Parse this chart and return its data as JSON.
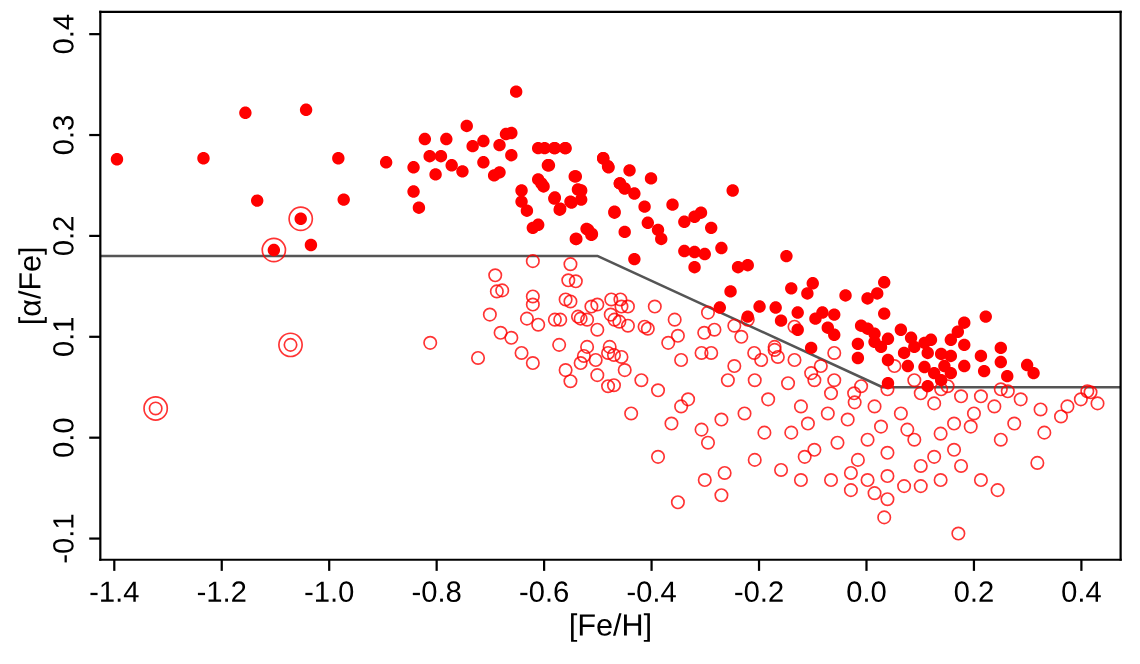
{
  "chart_data": {
    "type": "scatter",
    "xlabel": "[Fe/H]",
    "ylabel": "[α/Fe]",
    "xlim": [
      -1.426,
      0.473
    ],
    "ylim": [
      -0.121,
      0.422
    ],
    "xticks": [
      -1.4,
      -1.2,
      {
        "value": -1.0,
        "label": "-1.0"
      },
      -0.8,
      -0.6,
      -0.4,
      -0.2,
      {
        "value": 0.0,
        "label": "0.0"
      },
      0.2,
      0.4
    ],
    "yticks": [
      -0.1,
      {
        "value": 0.0,
        "label": "0.0"
      },
      0.1,
      0.2,
      0.3,
      0.4
    ],
    "grid": false,
    "legend": false,
    "marker": "circle",
    "series": [
      {
        "type": "line",
        "color": "#555555",
        "marker": "none",
        "line_style": "solid",
        "x": [
          -1.426,
          -0.5,
          0.03,
          0.473
        ],
        "values": [
          0.18,
          0.18,
          0.05,
          0.05
        ]
      },
      {
        "color": "#ff0000",
        "x": [
          -1.395,
          -1.234,
          -1.156,
          -1.043,
          -1.134,
          -1.053,
          -1.103,
          -1.034,
          -0.983,
          -0.973,
          -0.894,
          -0.843,
          -0.843,
          -0.833,
          -0.822,
          -0.813,
          -0.802,
          -0.792,
          -0.782,
          -0.772,
          -0.752,
          -0.744,
          -0.733,
          -0.713,
          -0.713,
          -0.693,
          -0.683,
          -0.683,
          -0.671,
          -0.661,
          -0.661,
          -0.652,
          -0.642,
          -0.642,
          -0.632,
          -0.621,
          -0.611,
          -0.611,
          -0.611,
          -0.601,
          -0.591,
          -0.581,
          -0.581,
          -0.571,
          -0.561,
          -0.551,
          -0.541,
          -0.541,
          -0.531,
          -0.521,
          -0.511,
          -0.49,
          -0.48,
          -0.469,
          -0.459,
          -0.599,
          -0.58,
          -0.56,
          -0.593,
          -0.605,
          -0.58,
          -0.57,
          -0.543,
          -0.537,
          -0.531,
          -0.549,
          -0.54,
          -0.518,
          -0.512,
          -0.49,
          -0.481,
          -0.469,
          -0.459,
          -0.45,
          -0.441,
          -0.432,
          -0.401,
          -0.45,
          -0.413,
          -0.407,
          -0.388,
          -0.382,
          -0.361,
          -0.339,
          -0.32,
          -0.308,
          -0.289,
          -0.339,
          -0.32,
          -0.301,
          -0.27,
          -0.32,
          -0.432,
          -0.249,
          -0.239,
          -0.221,
          -0.253,
          -0.273,
          -0.221,
          -0.199,
          -0.169,
          -0.149,
          -0.159,
          -0.14,
          -0.128,
          -0.128,
          -0.11,
          -0.1,
          -0.095,
          -0.082,
          -0.072,
          -0.06,
          -0.06,
          -0.103,
          -0.039,
          0.002,
          0.02,
          0.033,
          0.033,
          -0.01,
          0.002,
          0.015,
          -0.016,
          -0.016,
          0.015,
          0.027,
          0.04,
          0.04,
          0.064,
          0.083,
          0.07,
          0.089,
          0.108,
          0.12,
          0.114,
          0.139,
          0.145,
          0.126,
          0.04,
          0.077,
          0.108,
          0.157,
          0.17,
          0.182,
          0.222,
          0.182,
          0.157,
          0.157,
          0.182,
          0.213,
          0.219,
          0.25,
          0.25,
          0.262,
          0.299,
          0.311,
          0.114,
          0.139
        ],
        "values": [
          0.276,
          0.277,
          0.322,
          0.325,
          0.235,
          0.217,
          0.186,
          0.191,
          0.277,
          0.236,
          0.273,
          0.268,
          0.244,
          0.228,
          0.296,
          0.279,
          0.261,
          0.279,
          0.296,
          0.27,
          0.264,
          0.309,
          0.289,
          0.273,
          0.294,
          0.26,
          0.263,
          0.29,
          0.301,
          0.302,
          0.28,
          0.343,
          0.245,
          0.234,
          0.225,
          0.208,
          0.211,
          0.287,
          0.256,
          0.249,
          0.27,
          0.237,
          0.287,
          0.226,
          0.287,
          0.234,
          0.259,
          0.197,
          0.245,
          0.207,
          0.202,
          0.277,
          0.268,
          0.223,
          0.252,
          0.287,
          0.287,
          0.287,
          0.27,
          0.252,
          0.238,
          0.227,
          0.259,
          0.246,
          0.236,
          0.233,
          0.197,
          0.206,
          0.201,
          0.277,
          0.269,
          0.224,
          0.252,
          0.247,
          0.265,
          0.242,
          0.257,
          0.204,
          0.229,
          0.213,
          0.206,
          0.197,
          0.231,
          0.214,
          0.219,
          0.223,
          0.208,
          0.185,
          0.184,
          0.182,
          0.188,
          0.169,
          0.177,
          0.245,
          0.169,
          0.171,
          0.145,
          0.129,
          0.12,
          0.13,
          0.129,
          0.18,
          0.116,
          0.148,
          0.124,
          0.107,
          0.143,
          0.153,
          0.118,
          0.124,
          0.109,
          0.102,
          0.122,
          0.089,
          0.141,
          0.138,
          0.143,
          0.154,
          0.123,
          0.111,
          0.108,
          0.103,
          0.093,
          0.079,
          0.095,
          0.09,
          0.098,
          0.077,
          0.107,
          0.099,
          0.084,
          0.09,
          0.094,
          0.097,
          0.084,
          0.083,
          0.071,
          0.064,
          0.054,
          0.071,
          0.07,
          0.097,
          0.105,
          0.114,
          0.12,
          0.092,
          0.081,
          0.064,
          0.071,
          0.081,
          0.066,
          0.089,
          0.075,
          0.061,
          0.072,
          0.064,
          0.051,
          0.057
        ]
      },
      {
        "color": "#ff0000",
        "x": [
          -1.323,
          -1.072,
          -0.691,
          -0.701,
          -0.681,
          -0.688,
          -0.678,
          -0.661,
          -0.812,
          -0.723,
          -0.642,
          -0.621,
          -0.621,
          -0.621,
          -0.632,
          -0.611,
          -0.621,
          -0.57,
          -0.572,
          -0.56,
          -0.551,
          -0.551,
          -0.541,
          -0.551,
          -0.532,
          -0.52,
          -0.52,
          -0.526,
          -0.532,
          -0.501,
          -0.501,
          -0.501,
          -0.504,
          -0.47,
          -0.46,
          -0.458,
          -0.476,
          -0.47,
          -0.475,
          -0.444,
          -0.413,
          -0.478,
          -0.45,
          -0.481,
          -0.456,
          -0.388,
          -0.363,
          -0.388,
          -0.351,
          -0.301,
          -0.27,
          -0.264,
          -0.295,
          -0.332,
          -0.307,
          -0.369,
          -0.345,
          -0.283,
          -0.233,
          -0.258,
          -0.227,
          -0.208,
          -0.19,
          -0.159,
          -0.165,
          -0.171,
          -0.146,
          -0.122,
          -0.109,
          -0.097,
          -0.122,
          -0.066,
          -0.054,
          -0.035,
          -0.066,
          -0.085,
          -0.134,
          -0.029,
          -0.029,
          0.002,
          0.015,
          0.033,
          0.039,
          0.07,
          0.002,
          0.015,
          -0.01,
          0.039,
          0.064,
          0.089,
          0.101,
          0.126,
          0.138,
          0.126,
          0.176,
          0.163,
          0.194,
          0.176,
          0.213,
          0.244,
          0.171,
          0.163,
          0.25,
          0.275,
          0.318,
          0.331,
          0.238,
          0.287,
          0.324,
          0.374,
          0.399,
          0.43,
          0.417,
          0.362,
          0.25,
          0.213,
          0.2,
          0.101,
          0.076,
          0.039,
          -0.022,
          -0.072,
          -0.183,
          -0.208,
          -0.246,
          -0.27,
          -0.307,
          -0.345,
          -0.419,
          -0.438,
          -0.469,
          -0.196,
          -0.097,
          0.052,
          0.089,
          0.151,
          -0.14,
          -0.115,
          0.039,
          0.101,
          0.138,
          -0.016,
          0.027,
          -0.06,
          -0.134,
          -0.221,
          -0.295,
          -0.357,
          -0.394,
          -0.555,
          -0.56,
          -0.58,
          -0.537,
          -0.512,
          -0.481,
          -0.456,
          -0.444,
          -0.407,
          -0.351,
          -0.302,
          -0.289,
          -0.246,
          -0.209,
          -0.171,
          -0.103,
          -0.06,
          -0.023,
          0.139,
          0.263,
          0.411
        ],
        "values": [
          0.029,
          0.092,
          0.161,
          0.122,
          0.104,
          0.145,
          0.146,
          0.099,
          0.094,
          0.079,
          0.084,
          0.175,
          0.14,
          0.132,
          0.118,
          0.112,
          0.074,
          0.117,
          0.092,
          0.067,
          0.172,
          0.135,
          0.155,
          0.056,
          0.118,
          0.117,
          0.09,
          0.081,
          0.074,
          0.132,
          0.107,
          0.062,
          0.077,
          0.082,
          0.115,
          0.137,
          0.122,
          0.052,
          0.137,
          0.13,
          0.11,
          0.09,
          0.067,
          0.051,
          0.08,
          0.047,
          0.014,
          -0.019,
          -0.064,
          -0.042,
          -0.057,
          -0.035,
          -0.005,
          0.038,
          0.084,
          0.094,
          0.077,
          0.107,
          0.1,
          0.057,
          0.024,
          -0.022,
          0.005,
          -0.032,
          0.08,
          0.09,
          0.054,
          0.031,
          0.014,
          -0.012,
          -0.042,
          -0.042,
          -0.005,
          0.018,
          0.044,
          0.071,
          0.077,
          -0.035,
          -0.052,
          -0.042,
          -0.055,
          -0.079,
          -0.061,
          -0.048,
          -0.002,
          0.031,
          0.051,
          0.048,
          0.024,
          -0.002,
          -0.028,
          -0.019,
          0.004,
          0.034,
          0.041,
          0.014,
          0.011,
          -0.028,
          -0.042,
          -0.052,
          -0.095,
          -0.012,
          -0.002,
          0.014,
          -0.025,
          0.005,
          0.031,
          0.038,
          0.028,
          0.031,
          0.038,
          0.034,
          0.045,
          0.021,
          0.048,
          0.041,
          0.024,
          0.044,
          0.008,
          -0.015,
          0.035,
          0.024,
          0.038,
          0.057,
          0.071,
          0.018,
          0.008,
          0.031,
          0.057,
          0.024,
          0.117,
          0.077,
          0.057,
          0.071,
          0.057,
          0.051,
          0.005,
          -0.019,
          -0.038,
          -0.048,
          -0.042,
          -0.022,
          0.011,
          0.084,
          0.11,
          0.117,
          0.124,
          0.117,
          0.13,
          0.156,
          0.137,
          0.117,
          0.12,
          0.13,
          0.084,
          0.13,
          0.111,
          0.108,
          0.101,
          0.104,
          0.084,
          0.111,
          0.084,
          0.087,
          0.064,
          0.057,
          0.044,
          0.048,
          0.046,
          0.046
        ]
      },
      {
        "color": "#ff0000",
        "x": [
          -1.103,
          -1.053,
          -1.072,
          -1.323
        ],
        "values": [
          0.186,
          0.217,
          0.092,
          0.029
        ]
      }
    ]
  }
}
